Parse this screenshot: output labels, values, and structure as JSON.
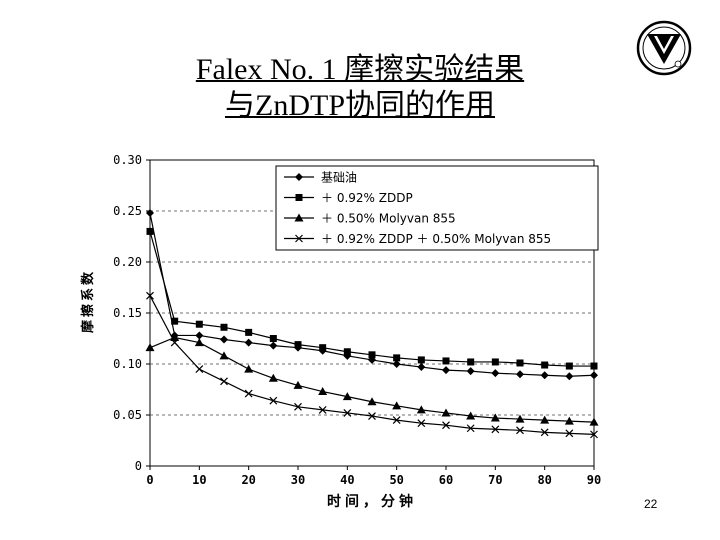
{
  "slide": {
    "title_line1": "Falex No. 1 摩擦实验结果",
    "title_line2": "与ZnDTP协同的作用",
    "page_number": "22"
  },
  "chart_data": {
    "type": "line",
    "xlabel": "时间，分钟",
    "ylabel": "摩擦系数",
    "xlim": [
      0,
      90
    ],
    "ylim": [
      0,
      0.3
    ],
    "x_ticks": [
      "0",
      "10",
      "20",
      "30",
      "40",
      "50",
      "60",
      "70",
      "80",
      "90"
    ],
    "y_ticks": [
      "0",
      "0.05",
      "0.10",
      "0.15",
      "0.20",
      "0.25",
      "0.30"
    ],
    "grid": "horizontal dashed",
    "legend_position": "top-right",
    "x": [
      0,
      5,
      10,
      15,
      20,
      25,
      30,
      35,
      40,
      45,
      50,
      55,
      60,
      65,
      70,
      75,
      80,
      85,
      90
    ],
    "series": [
      {
        "name": "基础油",
        "marker": "diamond",
        "values": [
          0.248,
          0.128,
          0.128,
          0.124,
          0.121,
          0.118,
          0.116,
          0.113,
          0.108,
          0.104,
          0.1,
          0.097,
          0.094,
          0.093,
          0.091,
          0.09,
          0.089,
          0.088,
          0.089
        ]
      },
      {
        "name": "＋ 0.92% ZDDP",
        "marker": "square",
        "values": [
          0.23,
          0.142,
          0.139,
          0.136,
          0.131,
          0.125,
          0.119,
          0.116,
          0.112,
          0.109,
          0.106,
          0.104,
          0.103,
          0.102,
          0.102,
          0.101,
          0.099,
          0.098,
          0.098
        ]
      },
      {
        "name": "＋ 0.50% Molyvan 855",
        "marker": "triangle",
        "values": [
          0.116,
          0.126,
          0.121,
          0.108,
          0.095,
          0.086,
          0.079,
          0.073,
          0.068,
          0.063,
          0.059,
          0.055,
          0.052,
          0.049,
          0.047,
          0.046,
          0.045,
          0.044,
          0.043
        ]
      },
      {
        "name": "＋ 0.92% ZDDP ＋ 0.50% Molyvan 855",
        "marker": "x",
        "values": [
          0.167,
          0.121,
          0.095,
          0.083,
          0.071,
          0.064,
          0.058,
          0.055,
          0.052,
          0.049,
          0.045,
          0.042,
          0.04,
          0.037,
          0.036,
          0.035,
          0.033,
          0.032,
          0.031
        ]
      }
    ]
  }
}
